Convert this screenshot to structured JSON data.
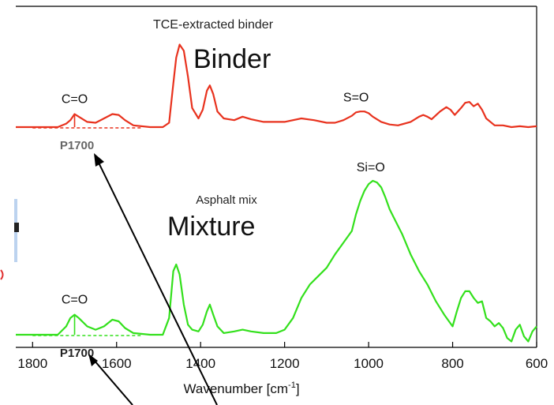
{
  "chart_data": {
    "type": "line",
    "xlabel": "Wavenumber [cm",
    "xlabel_sup": "-1",
    "xlabel_close": "]",
    "x_reversed": true,
    "xlim": [
      1840,
      600
    ],
    "x_ticks": [
      1800,
      1600,
      1400,
      1200,
      1000,
      800,
      600
    ],
    "x_tick_labels": [
      "1800",
      "1600",
      "1400",
      "1200",
      "1000",
      "800",
      "600"
    ],
    "series": [
      {
        "name": "TCE-extracted binder",
        "color": "#e8321e",
        "x": [
          1840,
          1740,
          1720,
          1710,
          1700,
          1690,
          1670,
          1650,
          1630,
          1610,
          1595,
          1580,
          1560,
          1520,
          1490,
          1475,
          1465,
          1458,
          1450,
          1440,
          1430,
          1420,
          1405,
          1395,
          1385,
          1378,
          1370,
          1360,
          1345,
          1320,
          1300,
          1280,
          1250,
          1200,
          1160,
          1130,
          1100,
          1080,
          1060,
          1040,
          1030,
          1020,
          1010,
          1000,
          990,
          970,
          950,
          930,
          900,
          880,
          870,
          860,
          850,
          830,
          815,
          805,
          795,
          780,
          770,
          760,
          750,
          740,
          730,
          720,
          700,
          680,
          660,
          640,
          620,
          600
        ],
        "y": [
          0.0,
          0.0,
          0.04,
          0.08,
          0.15,
          0.12,
          0.06,
          0.05,
          0.1,
          0.15,
          0.14,
          0.08,
          0.02,
          0.0,
          0.0,
          0.05,
          0.5,
          0.8,
          0.95,
          0.88,
          0.58,
          0.22,
          0.1,
          0.2,
          0.42,
          0.48,
          0.38,
          0.18,
          0.1,
          0.08,
          0.12,
          0.09,
          0.06,
          0.06,
          0.1,
          0.08,
          0.05,
          0.05,
          0.08,
          0.13,
          0.17,
          0.18,
          0.18,
          0.16,
          0.12,
          0.06,
          0.03,
          0.02,
          0.06,
          0.12,
          0.14,
          0.12,
          0.09,
          0.18,
          0.23,
          0.2,
          0.14,
          0.22,
          0.28,
          0.29,
          0.24,
          0.27,
          0.2,
          0.1,
          0.02,
          0.02,
          0.0,
          0.01,
          0.0,
          0.01
        ],
        "ann_label": "Binder"
      },
      {
        "name": "Asphalt mix",
        "color": "#33e01c",
        "x": [
          1840,
          1740,
          1720,
          1710,
          1700,
          1690,
          1670,
          1650,
          1630,
          1610,
          1595,
          1580,
          1560,
          1520,
          1490,
          1475,
          1465,
          1458,
          1450,
          1440,
          1430,
          1420,
          1405,
          1395,
          1385,
          1378,
          1370,
          1360,
          1345,
          1320,
          1300,
          1280,
          1250,
          1220,
          1200,
          1180,
          1160,
          1140,
          1120,
          1100,
          1080,
          1060,
          1040,
          1030,
          1020,
          1010,
          1000,
          990,
          980,
          970,
          960,
          950,
          940,
          920,
          900,
          880,
          860,
          840,
          820,
          800,
          790,
          780,
          770,
          760,
          750,
          740,
          730,
          720,
          710,
          700,
          690,
          680,
          670,
          660,
          650,
          640,
          630,
          620,
          610,
          600
        ],
        "y": [
          0.0,
          0.0,
          0.05,
          0.1,
          0.12,
          0.1,
          0.05,
          0.03,
          0.05,
          0.09,
          0.08,
          0.04,
          0.01,
          0.0,
          0.0,
          0.1,
          0.38,
          0.42,
          0.36,
          0.18,
          0.06,
          0.03,
          0.02,
          0.06,
          0.14,
          0.18,
          0.12,
          0.05,
          0.01,
          0.02,
          0.03,
          0.02,
          0.01,
          0.01,
          0.03,
          0.1,
          0.22,
          0.3,
          0.35,
          0.4,
          0.48,
          0.55,
          0.62,
          0.72,
          0.8,
          0.86,
          0.9,
          0.92,
          0.91,
          0.88,
          0.82,
          0.75,
          0.7,
          0.6,
          0.48,
          0.38,
          0.3,
          0.2,
          0.12,
          0.05,
          0.14,
          0.22,
          0.26,
          0.26,
          0.22,
          0.19,
          0.2,
          0.1,
          0.08,
          0.05,
          0.07,
          0.04,
          -0.02,
          -0.04,
          0.03,
          0.06,
          -0.01,
          -0.04,
          0.02,
          0.05
        ],
        "ann_label": "Mixture"
      }
    ],
    "annotations": [
      {
        "text": "C=O",
        "series": 0,
        "x": 1700
      },
      {
        "text": "P1700",
        "series": 0,
        "x": 1700,
        "baseline": true
      },
      {
        "text": "S=O",
        "series": 0,
        "x": 1030
      },
      {
        "text": "C=O",
        "series": 1,
        "x": 1700
      },
      {
        "text": "P1700",
        "series": 1,
        "x": 1700,
        "baseline": true
      },
      {
        "text": "Si=O",
        "series": 1,
        "x": 995
      }
    ],
    "grid": false,
    "legend": "none"
  }
}
